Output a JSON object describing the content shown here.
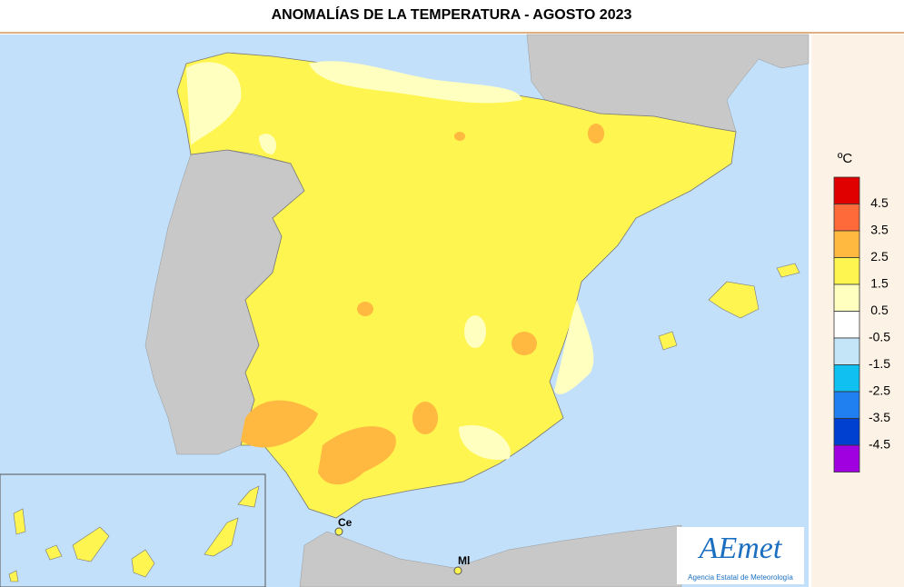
{
  "title": "ANOMALÍAS DE LA TEMPERATURA - AGOSTO 2023",
  "legend": {
    "unit": "ºC",
    "labels": [
      "4.5",
      "3.5",
      "2.5",
      "1.5",
      "0.5",
      "-0.5",
      "-1.5",
      "-2.5",
      "-3.5",
      "-4.5"
    ],
    "colors": [
      "#e00000",
      "#ff6a3a",
      "#ffb840",
      "#fff550",
      "#ffffc0",
      "#ffffff",
      "#c4e4f8",
      "#10c0f0",
      "#2080f0",
      "#0040d0",
      "#a000e0"
    ]
  },
  "places": [
    "Ce",
    "Ml"
  ],
  "logo": {
    "name": "AEmet",
    "subtitle": "Agencia Estatal de Meteorología"
  }
}
